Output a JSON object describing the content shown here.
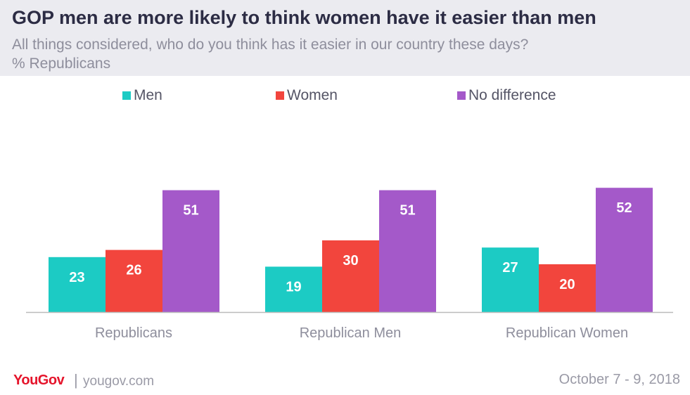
{
  "header": {
    "title": "GOP men are more likely to think women have it easier than men",
    "subtitle_line1": "All things considered, who do you think has it easier in our country these days?",
    "subtitle_line2": "% Republicans"
  },
  "footer": {
    "brand": "YouGov",
    "separator": "|",
    "site": "yougov.com",
    "date": "October 7 - 9, 2018"
  },
  "colors": {
    "men": "#1ccbc4",
    "women": "#f2453d",
    "no_difference": "#a459c9",
    "axis": "#bbbbbb",
    "tick_label": "#8e8e9c",
    "value_label": "#ffffff"
  },
  "chart_data": {
    "type": "bar",
    "title": "GOP men are more likely to think women have it easier than men",
    "categories": [
      "Republicans",
      "Republican Men",
      "Republican Women"
    ],
    "series": [
      {
        "name": "Men",
        "values": [
          23,
          19,
          27
        ]
      },
      {
        "name": "Women",
        "values": [
          26,
          30,
          20
        ]
      },
      {
        "name": "No difference",
        "values": [
          51,
          51,
          52
        ]
      }
    ],
    "ylim": [
      0,
      60
    ],
    "grid": false,
    "legend_position": "top-center",
    "data_labels": true
  }
}
